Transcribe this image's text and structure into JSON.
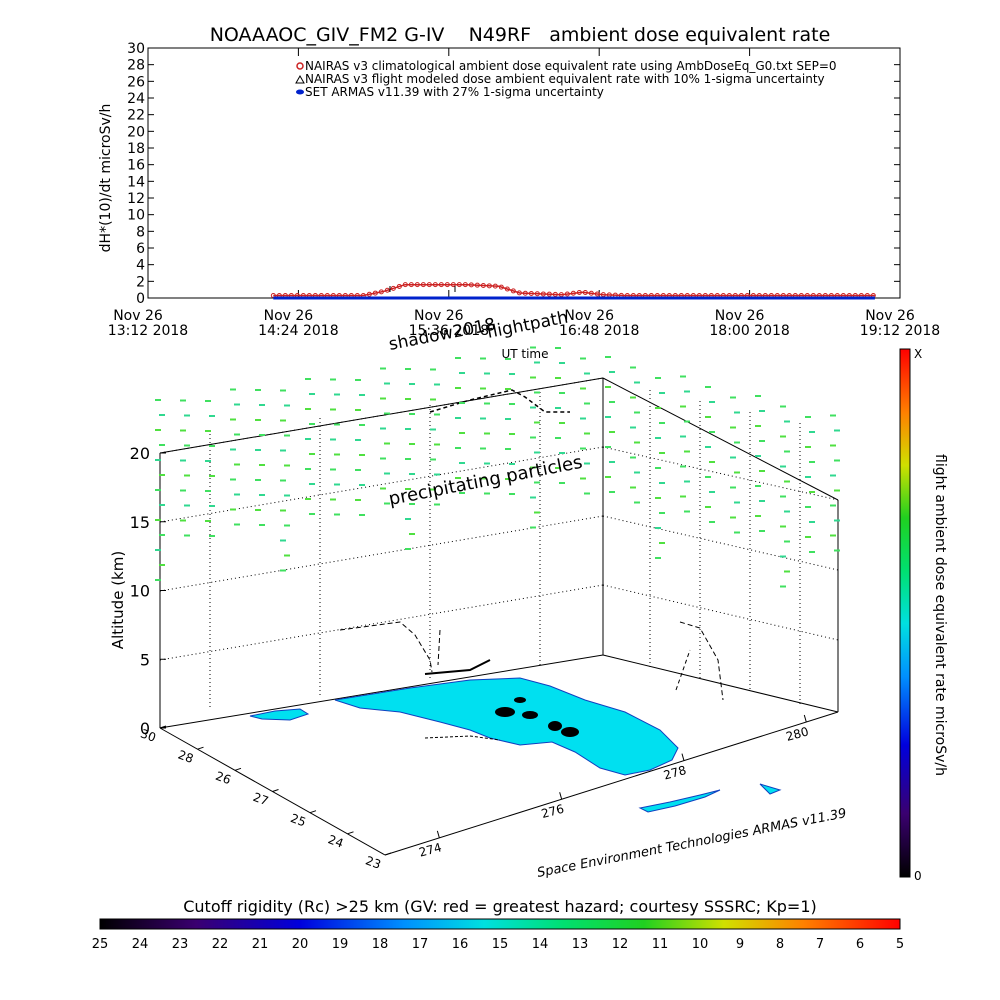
{
  "chart_data": [
    {
      "type": "line",
      "title": "NOAAAOC_GIV_FM2 G-IV    N49RF   ambient dose equivalent rate",
      "xlabel": "UT time",
      "ylabel": "dH*(10)/dt microSv/h",
      "ylim": [
        0,
        30
      ],
      "yticks": [
        0,
        2,
        4,
        6,
        8,
        10,
        12,
        14,
        16,
        18,
        20,
        22,
        24,
        26,
        28,
        30
      ],
      "xticks": [
        {
          "day": "Nov 26",
          "time": "13:12 2018"
        },
        {
          "day": "Nov 26",
          "time": "14:24 2018"
        },
        {
          "day": "Nov 26",
          "time": "15:36 2018"
        },
        {
          "day": "Nov 26",
          "time": "16:48 2018"
        },
        {
          "day": "Nov 26",
          "time": "18:00 2018"
        },
        {
          "day": "Nov 26",
          "time": "19:12 2018"
        }
      ],
      "legend": [
        "NAIRAS v3 climatological ambient dose equivalent rate using AmbDoseEq_G0.txt SEP=0",
        "NAIRAS v3 flight modeled dose ambient equivalent rate with 10% 1-sigma uncertainty",
        "SET ARMAS v11.39 with 27% 1-sigma uncertainty"
      ],
      "legend_position": "top-right",
      "series": [
        {
          "name": "NAIRAS v3 climatological ambient dose equivalent rate using AmbDoseEq_G0.txt SEP=0",
          "color": "#cc2222",
          "x": [
            "14:12",
            "14:55",
            "15:05",
            "15:15",
            "15:45",
            "16:00",
            "16:10",
            "16:30",
            "16:40",
            "16:50",
            "17:00",
            "18:00",
            "19:00"
          ],
          "y": [
            0.3,
            0.3,
            0.8,
            1.6,
            1.6,
            1.4,
            0.6,
            0.4,
            0.7,
            0.4,
            0.3,
            0.3,
            0.3
          ]
        },
        {
          "name": "SET ARMAS v11.39 with 27% 1-sigma uncertainty",
          "color": "#0022cc",
          "x": [
            "14:12",
            "19:00"
          ],
          "y": [
            0.0,
            0.0
          ]
        }
      ],
      "annotations": [
        "shadow2018",
        "flightpath"
      ]
    },
    {
      "type": "scatter",
      "zlabel": "Altitude (km)",
      "zticks": [
        0,
        5,
        10,
        15,
        20
      ],
      "lat_ticks": [
        "30",
        "28",
        "26",
        "27",
        "25",
        "24",
        "23"
      ],
      "lon_ticks": [
        "274",
        "276",
        "278",
        "280"
      ],
      "annotations": [
        "precipitating particles"
      ],
      "credit": "Space Environment Technologies ARMAS v11.39",
      "colorbar": {
        "label": "flight ambient dose equivalent rate microSv/h",
        "top_label": "X",
        "bottom_label": "0"
      },
      "bottom_colorbar": {
        "title": "Cutoff rigidity (Rc) >25 km (GV: red = greatest hazard; courtesy SSSRC; Kp=1)",
        "ticks": [
          "25",
          "24",
          "23",
          "22",
          "21",
          "20",
          "19",
          "18",
          "17",
          "16",
          "15",
          "14",
          "13",
          "12",
          "11",
          "10",
          "9",
          "8",
          "7",
          "6",
          "5"
        ]
      }
    }
  ]
}
